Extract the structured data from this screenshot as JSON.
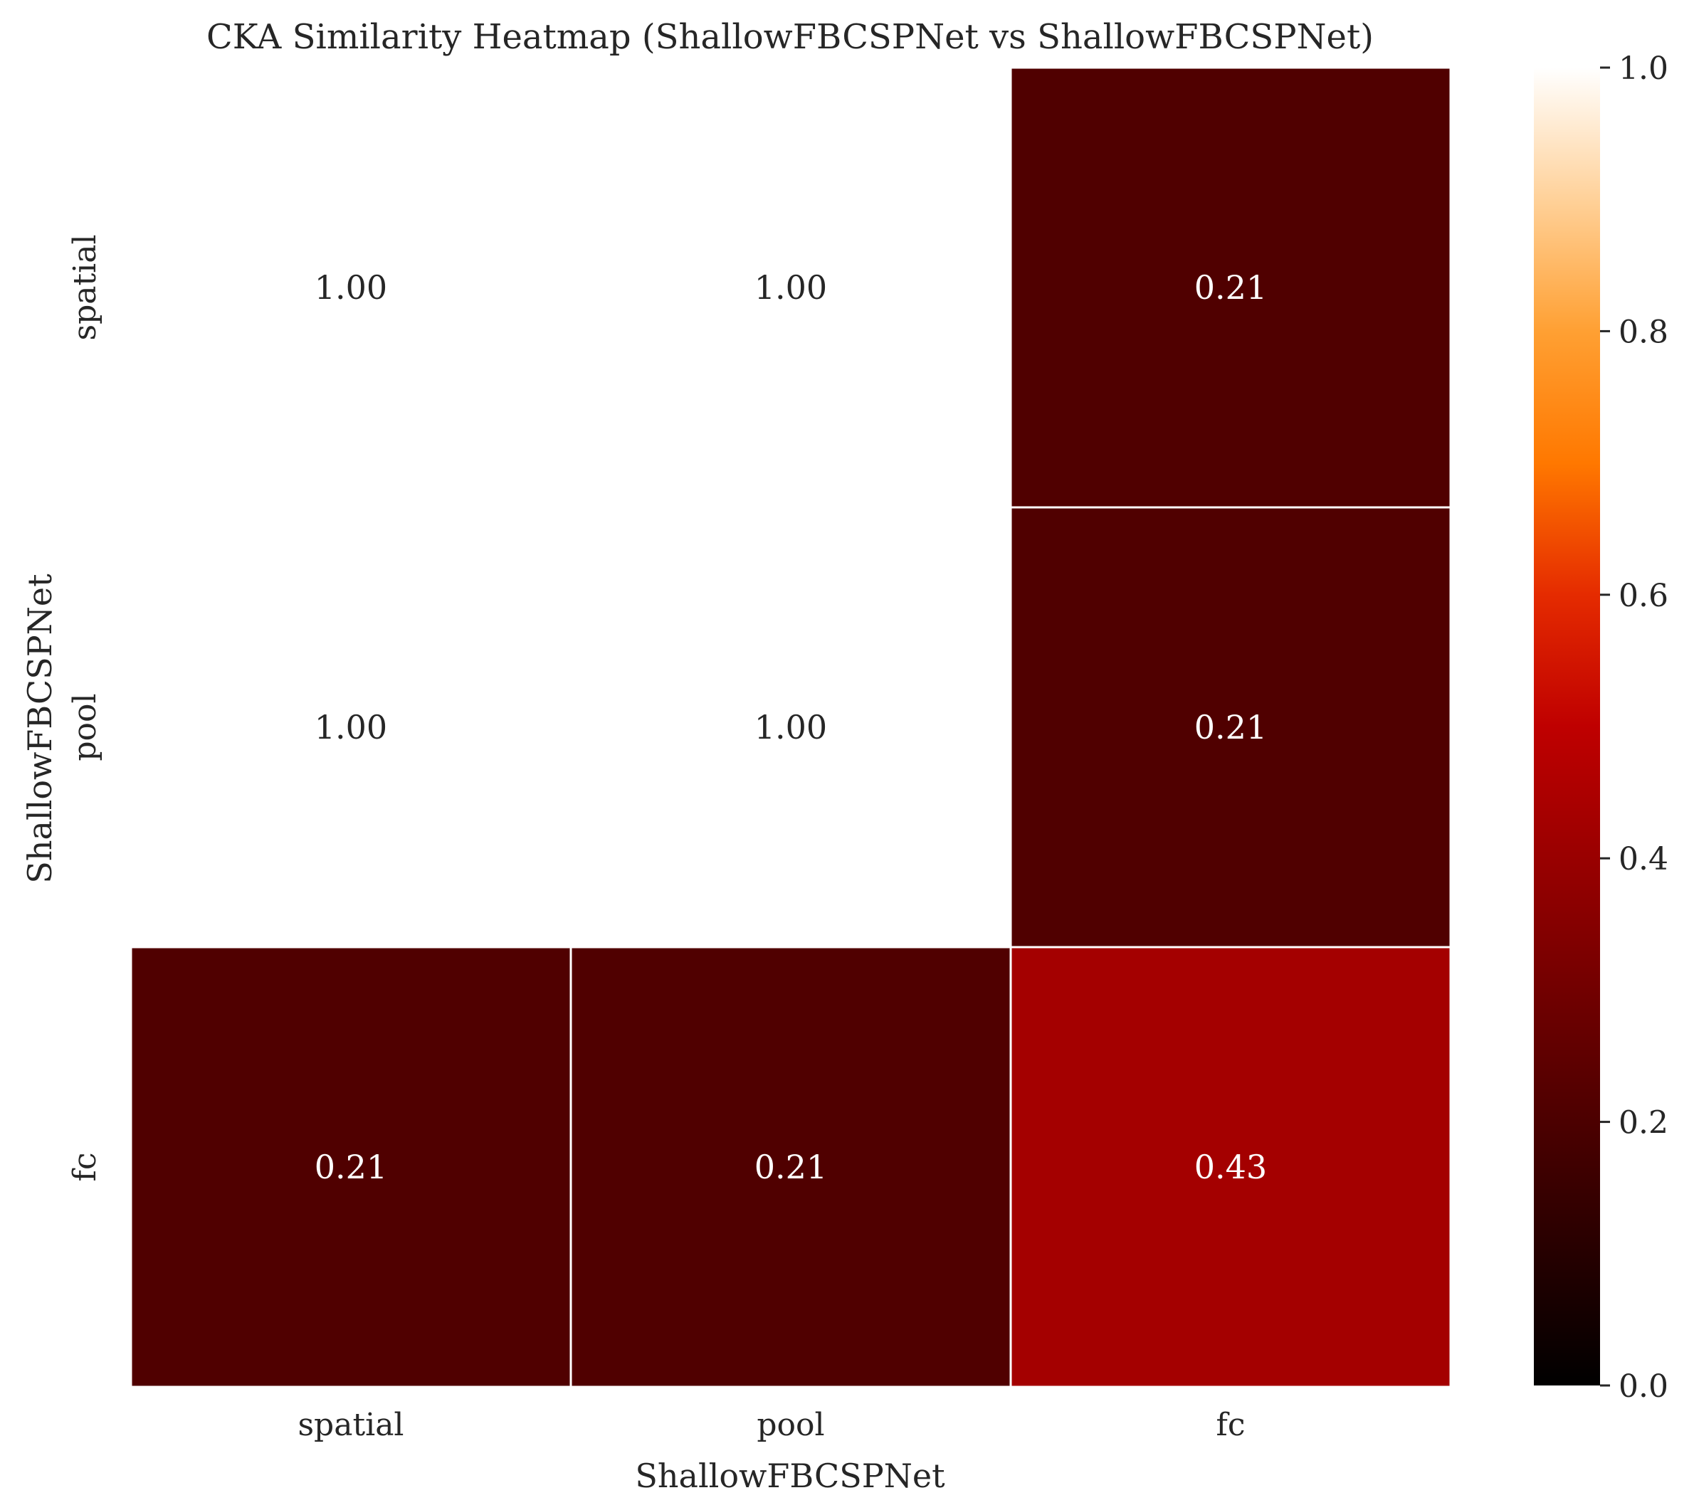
{
  "chart_data": {
    "type": "heatmap",
    "title": "CKA Similarity Heatmap (ShallowFBCSPNet vs ShallowFBCSPNet)",
    "xlabel": "ShallowFBCSPNet",
    "ylabel": "ShallowFBCSPNet",
    "x_categories": [
      "spatial",
      "pool",
      "fc"
    ],
    "y_categories": [
      "spatial",
      "pool",
      "fc"
    ],
    "values": [
      [
        1.0,
        1.0,
        0.21
      ],
      [
        1.0,
        1.0,
        0.21
      ],
      [
        0.21,
        0.21,
        0.43
      ]
    ],
    "value_labels": [
      [
        "1.00",
        "1.00",
        "0.21"
      ],
      [
        "1.00",
        "1.00",
        "0.21"
      ],
      [
        "0.21",
        "0.21",
        "0.43"
      ]
    ],
    "colormap": "gist_heat",
    "vmin": 0.0,
    "vmax": 1.0,
    "colorbar_ticks": [
      "0.0",
      "0.2",
      "0.4",
      "0.6",
      "0.8",
      "1.0"
    ],
    "colorbar_tick_values": [
      0.0,
      0.2,
      0.4,
      0.6,
      0.8,
      1.0
    ],
    "cell_border_color": "#ffffff",
    "dark_text_color": "#262626",
    "light_text_color": "#ffffff"
  }
}
